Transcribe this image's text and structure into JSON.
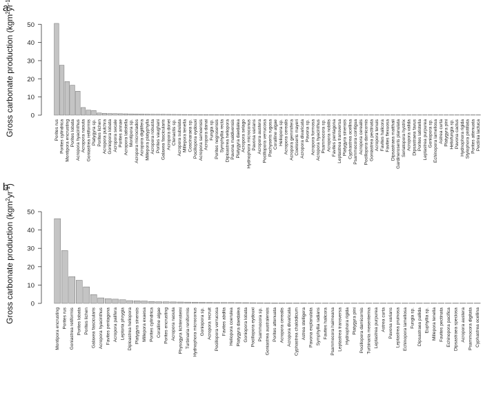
{
  "chart_data": [
    {
      "panel": "a",
      "type": "bar",
      "ylabel": "Gross carbonate production (kgm",
      "ylabel_unit_sup": "2",
      "ylabel_unit_mid": "yr",
      "ylabel_unit_sup2": "-1",
      "ylabel_close": ")",
      "ylim": [
        0,
        52
      ],
      "yticks": [
        0,
        10,
        20,
        30,
        40,
        50
      ],
      "grid": false,
      "categories": [
        "Porites rus",
        "Porites cylindrica",
        "Montipora encrusting",
        "Porites lobata",
        "Acropora hyacinthus",
        "Acropora nasuta",
        "Goniastrea retiformis",
        "Platygyra sp.",
        "Porites lichen",
        "Acropora pulchra",
        "Goniopora lobata",
        "Acropora secale",
        "Porites annae",
        "Acropora latistella",
        "Montipora sp.",
        "Acropora microclados",
        "Acropora digitifera",
        "Millepora platyphylla",
        "Acropora robusta",
        "Porites vaughani",
        "Galaxea fascicularis",
        "Acropora donei",
        "Ctenactis sp.",
        "Acropora subulata",
        "Millepora tenella",
        "Coscinaraea sp.",
        "Pocillopora eydouxi",
        "Acropora samoensis",
        "Acropora danai",
        "Fungia sp.",
        "Porites negrosensis",
        "Symphyllia recta",
        "Diploastrea heliopora",
        "Pavona maldivensis",
        "Platygyra daedalea",
        "Acropora selago",
        "Hydnophora microconus",
        "Pavona varians",
        "Acropora austera",
        "Pocillopora verrucosa",
        "Pachyseris rugosa",
        "Coralline algae",
        "Heliopora sp.",
        "Acropora cerealis",
        "Acropora gemmifera",
        "Coeloseris mayeri",
        "Acropora divaricata",
        "Pavona sp.",
        "Acropora formosa",
        "Acropora hyacinthus",
        "Psammocora sp.",
        "Acropora nobilis",
        "Favites pentagona",
        "Leptastrea transversa",
        "Platygyra sinensis",
        "Cyphastrea ocellina",
        "Psammocora contigua",
        "Acropora cerealis",
        "Pocillopora damicornis",
        "Goniastrea pectinata",
        "Acropora tenuis",
        "Favites halicora",
        "Favites flexuosa",
        "Dipsastraea matthaii",
        "Gardineroseris planulata",
        "Seriatopora hystrix",
        "Acropora valida",
        "Dipsastraea favus",
        "Porites latistella",
        "Leptastrea purpurea",
        "Goniopora sp.",
        "Echinopora lamellosa",
        "Astrea curta",
        "Platygyra pini",
        "Heliofungia sp.",
        "Pavona cactus",
        "Hydnophora rigida",
        "Stylophora pistillata",
        "Porites attenuata",
        "Pectinia lactuca"
      ],
      "values": [
        50.5,
        27.5,
        18.5,
        16.5,
        13.2,
        4.2,
        2.8,
        2.6,
        1.2,
        1.0,
        0.9,
        0.85,
        0.8,
        0.75,
        0.7,
        0.65,
        0.6,
        0.55,
        0.5,
        0.48,
        0.45,
        0.42,
        0.4,
        0.38,
        0.36,
        0.34,
        0.32,
        0.3,
        0.28,
        0.27,
        0.26,
        0.25,
        0.24,
        0.23,
        0.22,
        0.21,
        0.2,
        0.19,
        0.18,
        0.17,
        0.16,
        0.15,
        0.14,
        0.13,
        0.12,
        0.11,
        0.1,
        0.1,
        0.09,
        0.09,
        0.08,
        0.08,
        0.07,
        0.07,
        0.06,
        0.06,
        0.05,
        0.05,
        0.05,
        0.04,
        0.04,
        0.04,
        0.03,
        0.03,
        0.03,
        0.03,
        0.02,
        0.02,
        0.02,
        0.02,
        0.02,
        0.01,
        0.01,
        0.01,
        0.01,
        0.01,
        0.01,
        0.01,
        0.01,
        0.01
      ]
    },
    {
      "panel": "b",
      "type": "bar",
      "ylabel": "Gross carbonate production (kgm",
      "ylabel_unit_sup": "2",
      "ylabel_unit_mid": "yr",
      "ylabel_unit_sup2": "-1",
      "ylabel_close": ")",
      "ylim": [
        0,
        50
      ],
      "yticks": [
        0,
        10,
        20,
        30,
        40,
        50
      ],
      "grid": false,
      "categories": [
        "Montipora encrusting",
        "Porites rus",
        "Goniastrea retiformis",
        "Porites lobata",
        "Porites lichen",
        "Galaxea fascicularis",
        "Acropora hyacinthus",
        "Favites pentagona",
        "Acropora palifera",
        "Leptoria phrygia",
        "Diploastrea heliopora",
        "Platygyra sinensis",
        "Millepora exaesa",
        "Porites cylindrica",
        "Coralline algae",
        "Porites encrusting",
        "Acropora nasuta",
        "Physogyra lichtensteini",
        "Turbinaria reniformis",
        "Hydnophora microconus",
        "Goniopora sp.",
        "Acropora recruit",
        "Pocillopora verrucosa",
        "Favites abdita",
        "Heliopora coerulea",
        "Platygyra daedalea",
        "Goniopora lobata",
        "Pocillopora eydouxi",
        "Psammocora sp.",
        "Goniastrea australensis",
        "Porites attenuata",
        "Acropora cerealis",
        "Acropora divaricata",
        "Cyphastrea chalcidicum",
        "Astrea stelligera",
        "Pavona explanulata",
        "Symphyllia radians",
        "Favites halicora",
        "Psammocora haimeana",
        "Leptastrea transversa",
        "Hydnophora rigida",
        "Platygyra pini",
        "Pocillopora damicornis",
        "Turbinaria mesenterina",
        "Leptastrea purpurea",
        "Astrea curta",
        "Pavona varians",
        "Leptastrea pruinosa",
        "Echinopora lamellosa",
        "Fungia sp.",
        "Dipsastraea pallida",
        "Euphyllia sp.",
        "Millepora tenella",
        "Favites pectinata",
        "Echinopora pacifica",
        "Dipsastraea speciosa",
        "Acropora austera",
        "Psammocora digitata",
        "Cyphastrea ocellina"
      ],
      "values": [
        46.2,
        28.8,
        14.6,
        12.6,
        9.0,
        4.8,
        3.0,
        2.6,
        2.3,
        2.0,
        1.5,
        1.4,
        1.3,
        1.0,
        0.9,
        0.85,
        0.8,
        0.75,
        0.7,
        0.65,
        0.6,
        0.55,
        0.5,
        0.48,
        0.45,
        0.42,
        0.4,
        0.37,
        0.34,
        0.32,
        0.3,
        0.28,
        0.26,
        0.24,
        0.22,
        0.2,
        0.18,
        0.17,
        0.16,
        0.15,
        0.14,
        0.13,
        0.12,
        0.11,
        0.1,
        0.09,
        0.08,
        0.07,
        0.06,
        0.05,
        0.05,
        0.04,
        0.04,
        0.03,
        0.03,
        0.02,
        0.02,
        0.01,
        0.01
      ]
    }
  ]
}
